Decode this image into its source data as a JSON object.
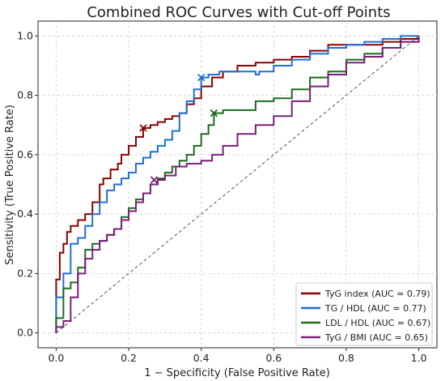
{
  "chart_data": {
    "type": "line",
    "title": "Combined ROC Curves with Cut-off Points",
    "xlabel": "1 − Specificity (False Positive Rate)",
    "ylabel": "Sensitivity (True Positive Rate)",
    "xlim": [
      -0.05,
      1.05
    ],
    "ylim": [
      -0.05,
      1.05
    ],
    "xticks": [
      0.0,
      0.2,
      0.4,
      0.6,
      0.8,
      1.0
    ],
    "yticks": [
      0.0,
      0.2,
      0.4,
      0.6,
      0.8,
      1.0
    ],
    "xtick_labels": [
      "0.0",
      "0.2",
      "0.4",
      "0.6",
      "0.8",
      "1.0"
    ],
    "ytick_labels": [
      "0.0",
      "0.2",
      "0.4",
      "0.6",
      "0.8",
      "1.0"
    ],
    "grid": true,
    "legend_position": "bottom-right",
    "reference_line": {
      "x": [
        0,
        1
      ],
      "y": [
        0,
        1
      ],
      "color": "#555555",
      "style": "dashed"
    },
    "series": [
      {
        "name": "TyG index (AUC = 0.79)",
        "color": "#8b0000",
        "cutoff": [
          0.24,
          0.69
        ],
        "x": [
          0.0,
          0.0,
          0.01,
          0.01,
          0.02,
          0.03,
          0.04,
          0.06,
          0.08,
          0.1,
          0.12,
          0.13,
          0.15,
          0.17,
          0.18,
          0.2,
          0.22,
          0.24,
          0.26,
          0.28,
          0.3,
          0.32,
          0.34,
          0.36,
          0.38,
          0.4,
          0.43,
          0.46,
          0.5,
          0.55,
          0.6,
          0.65,
          0.7,
          0.75,
          0.8,
          0.85,
          0.9,
          0.95,
          1.0
        ],
        "y": [
          0.0,
          0.18,
          0.22,
          0.27,
          0.3,
          0.34,
          0.36,
          0.38,
          0.4,
          0.44,
          0.5,
          0.52,
          0.55,
          0.57,
          0.6,
          0.63,
          0.66,
          0.69,
          0.7,
          0.71,
          0.72,
          0.73,
          0.74,
          0.77,
          0.79,
          0.83,
          0.86,
          0.88,
          0.9,
          0.91,
          0.92,
          0.93,
          0.95,
          0.97,
          0.97,
          0.97,
          0.98,
          0.99,
          1.0
        ]
      },
      {
        "name": "TG / HDL (AUC = 0.77)",
        "color": "#1f6fd6",
        "cutoff": [
          0.4,
          0.86
        ],
        "x": [
          0.0,
          0.0,
          0.02,
          0.04,
          0.06,
          0.08,
          0.1,
          0.12,
          0.14,
          0.16,
          0.18,
          0.2,
          0.22,
          0.24,
          0.26,
          0.28,
          0.3,
          0.32,
          0.34,
          0.36,
          0.38,
          0.4,
          0.42,
          0.45,
          0.5,
          0.55,
          0.56,
          0.6,
          0.65,
          0.7,
          0.75,
          0.8,
          0.85,
          0.9,
          0.95,
          1.0
        ],
        "y": [
          0.0,
          0.12,
          0.2,
          0.3,
          0.32,
          0.36,
          0.4,
          0.44,
          0.48,
          0.5,
          0.52,
          0.54,
          0.57,
          0.59,
          0.61,
          0.63,
          0.65,
          0.68,
          0.74,
          0.78,
          0.82,
          0.86,
          0.87,
          0.88,
          0.88,
          0.87,
          0.88,
          0.9,
          0.92,
          0.94,
          0.96,
          0.97,
          0.98,
          0.99,
          1.0,
          1.0
        ]
      },
      {
        "name": "LDL / HDL (AUC = 0.67)",
        "color": "#1e6b1e",
        "cutoff": [
          0.435,
          0.74
        ],
        "x": [
          0.0,
          0.0,
          0.02,
          0.04,
          0.06,
          0.08,
          0.1,
          0.12,
          0.14,
          0.16,
          0.18,
          0.2,
          0.22,
          0.24,
          0.26,
          0.28,
          0.3,
          0.32,
          0.34,
          0.36,
          0.38,
          0.4,
          0.42,
          0.435,
          0.46,
          0.5,
          0.55,
          0.6,
          0.65,
          0.7,
          0.75,
          0.8,
          0.85,
          0.9,
          0.95,
          1.0
        ],
        "y": [
          0.0,
          0.05,
          0.15,
          0.17,
          0.22,
          0.28,
          0.3,
          0.31,
          0.33,
          0.35,
          0.39,
          0.42,
          0.45,
          0.47,
          0.5,
          0.52,
          0.54,
          0.56,
          0.58,
          0.6,
          0.63,
          0.67,
          0.7,
          0.74,
          0.75,
          0.75,
          0.78,
          0.79,
          0.82,
          0.86,
          0.88,
          0.92,
          0.94,
          0.96,
          0.98,
          1.0
        ]
      },
      {
        "name": "TyG / BMI (AUC = 0.65)",
        "color": "#7b1f7b",
        "cutoff": [
          0.27,
          0.515
        ],
        "x": [
          0.0,
          0.0,
          0.02,
          0.04,
          0.06,
          0.08,
          0.1,
          0.12,
          0.14,
          0.16,
          0.18,
          0.2,
          0.22,
          0.24,
          0.26,
          0.28,
          0.3,
          0.33,
          0.36,
          0.4,
          0.43,
          0.46,
          0.5,
          0.55,
          0.6,
          0.65,
          0.7,
          0.75,
          0.8,
          0.85,
          0.9,
          0.95,
          1.0
        ],
        "y": [
          0.0,
          0.02,
          0.04,
          0.12,
          0.2,
          0.25,
          0.28,
          0.31,
          0.33,
          0.35,
          0.38,
          0.41,
          0.44,
          0.47,
          0.5,
          0.515,
          0.53,
          0.56,
          0.57,
          0.58,
          0.6,
          0.63,
          0.67,
          0.7,
          0.73,
          0.78,
          0.83,
          0.87,
          0.91,
          0.93,
          0.96,
          0.98,
          1.0
        ]
      }
    ]
  }
}
